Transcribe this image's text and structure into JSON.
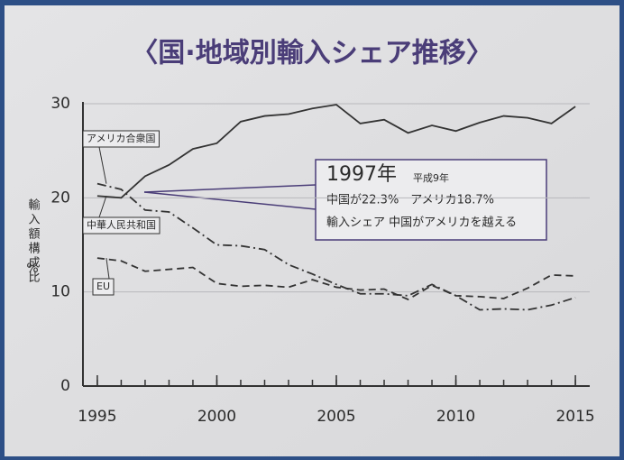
{
  "chart_data": {
    "type": "line",
    "title": "〈国·地域別輸入シェア推移〉",
    "y_label": "輸入額構成比",
    "y_unit": "%",
    "x": [
      1995,
      1996,
      1997,
      1998,
      1999,
      2000,
      2001,
      2002,
      2003,
      2004,
      2005,
      2006,
      2007,
      2008,
      2009,
      2010,
      2011,
      2012,
      2013,
      2014,
      2015
    ],
    "series": [
      {
        "name": "アメリカ合衆国",
        "color": "#333333",
        "style": "dashdot",
        "values": [
          21.5,
          20.9,
          18.7,
          18.5,
          16.8,
          15.0,
          14.9,
          14.5,
          12.9,
          11.9,
          10.8,
          9.8,
          9.8,
          9.6,
          10.8,
          9.6,
          8.1,
          8.2,
          8.1,
          8.6,
          9.4
        ]
      },
      {
        "name": "中華人民共和国",
        "color": "#333333",
        "style": "solid",
        "values": [
          20.2,
          20.0,
          22.3,
          23.5,
          25.2,
          25.8,
          28.1,
          28.7,
          28.9,
          29.5,
          29.9,
          27.9,
          28.3,
          26.9,
          27.7,
          27.1,
          28.0,
          28.7,
          28.5,
          27.9,
          29.7
        ]
      },
      {
        "name": "EU",
        "color": "#333333",
        "style": "dash",
        "values": [
          13.6,
          13.3,
          12.2,
          12.4,
          12.6,
          10.9,
          10.6,
          10.7,
          10.5,
          11.3,
          10.5,
          10.2,
          10.3,
          9.2,
          10.7,
          9.6,
          9.5,
          9.3,
          10.4,
          11.8,
          11.7
        ]
      }
    ],
    "xlim": [
      1994.4,
      2015.6
    ],
    "xticks": [
      1995,
      2000,
      2005,
      2010,
      2015
    ],
    "ylim": [
      0,
      30
    ],
    "yticks": [
      0,
      10,
      20,
      30
    ],
    "grid": true,
    "annotation": {
      "year": "1997年",
      "era": "平成9年",
      "line1": "中国が22.3%　アメリカ18.7%",
      "line2": "輸入シェア 中国がアメリカを越える"
    }
  }
}
